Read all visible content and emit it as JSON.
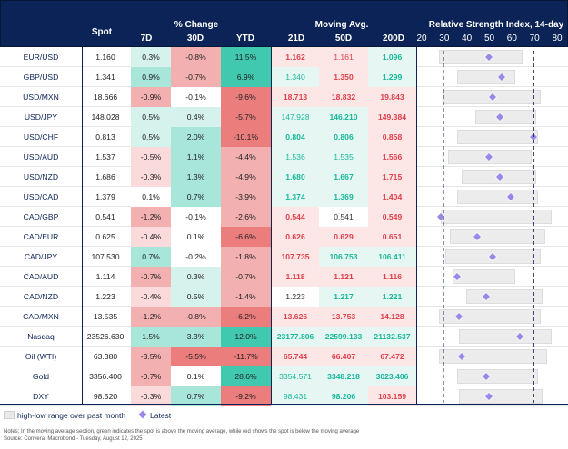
{
  "header": {
    "spot": "Spot",
    "pct_change": "% Change",
    "d7": "7D",
    "d30": "30D",
    "ytd": "YTD",
    "moving_avg": "Moving Avg.",
    "d21": "21D",
    "d50": "50D",
    "d200": "200D",
    "rsi_title": "Relative Strength Index, 14-day",
    "rsi_ticks": [
      "20",
      "30",
      "40",
      "50",
      "60",
      "70",
      "80"
    ]
  },
  "colors": {
    "navy": "#0b2357",
    "green_strong": "#41c9b0",
    "green_mid": "#a7e6d9",
    "green_light": "#d6f2ec",
    "red_strong": "#ec7d7d",
    "red_mid": "#f3b0b0",
    "red_light": "#fadada",
    "ma_green_text": "#17b89a",
    "ma_red_text": "#e0404b",
    "marker": "#9b87e6"
  },
  "rows": [
    {
      "name": "EUR/USD",
      "spot": "1.160",
      "d7": "0.3%",
      "d30": "-0.8%",
      "ytd": "11.5%",
      "ma21": "1.162",
      "ma50": "1.161",
      "ma200": "1.096",
      "rsi": {
        "low": "28",
        "high": "65",
        "latest": "50"
      }
    },
    {
      "name": "GBP/USD",
      "spot": "1.341",
      "d7": "0.9%",
      "d30": "-0.7%",
      "ytd": "6.9%",
      "ma21": "1.340",
      "ma50": "1.350",
      "ma200": "1.299",
      "rsi": {
        "low": "36",
        "high": "62",
        "latest": "56"
      }
    },
    {
      "name": "USD/MXN",
      "spot": "18.666",
      "d7": "-0.9%",
      "d30": "-0.1%",
      "ytd": "-9.6%",
      "ma21": "18.713",
      "ma50": "18.832",
      "ma200": "19.843",
      "rsi": {
        "low": "30",
        "high": "73",
        "latest": "52"
      }
    },
    {
      "name": "USD/JPY",
      "spot": "148.028",
      "d7": "0.5%",
      "d30": "0.4%",
      "ytd": "-5.7%",
      "ma21": "147.928",
      "ma50": "146.210",
      "ma200": "149.384",
      "rsi": {
        "low": "44",
        "high": "71",
        "latest": "55"
      }
    },
    {
      "name": "USD/CHF",
      "spot": "0.813",
      "d7": "0.5%",
      "d30": "2.0%",
      "ytd": "-10.1%",
      "ma21": "0.804",
      "ma50": "0.806",
      "ma200": "0.858",
      "rsi": {
        "low": "36",
        "high": "72",
        "latest": "70"
      }
    },
    {
      "name": "USD/AUD",
      "spot": "1.537",
      "d7": "-0.5%",
      "d30": "1.1%",
      "ytd": "-4.4%",
      "ma21": "1.536",
      "ma50": "1.535",
      "ma200": "1.566",
      "rsi": {
        "low": "32",
        "high": "69",
        "latest": "50"
      }
    },
    {
      "name": "USD/NZD",
      "spot": "1.686",
      "d7": "-0.3%",
      "d30": "1.3%",
      "ytd": "-4.9%",
      "ma21": "1.680",
      "ma50": "1.667",
      "ma200": "1.715",
      "rsi": {
        "low": "38",
        "high": "71",
        "latest": "55"
      }
    },
    {
      "name": "USD/CAD",
      "spot": "1.379",
      "d7": "0.1%",
      "d30": "0.7%",
      "ytd": "-3.9%",
      "ma21": "1.374",
      "ma50": "1.369",
      "ma200": "1.404",
      "rsi": {
        "low": "36",
        "high": "72",
        "latest": "60"
      }
    },
    {
      "name": "CAD/GBP",
      "spot": "0.541",
      "d7": "-1.2%",
      "d30": "-0.1%",
      "ytd": "-2.6%",
      "ma21": "0.544",
      "ma50": "0.541",
      "ma200": "0.549",
      "rsi": {
        "low": "29",
        "high": "78",
        "latest": "29"
      }
    },
    {
      "name": "CAD/EUR",
      "spot": "0.625",
      "d7": "-0.4%",
      "d30": "0.1%",
      "ytd": "-6.6%",
      "ma21": "0.626",
      "ma50": "0.629",
      "ma200": "0.651",
      "rsi": {
        "low": "33",
        "high": "75",
        "latest": "45"
      }
    },
    {
      "name": "CAD/JPY",
      "spot": "107.530",
      "d7": "0.7%",
      "d30": "-0.2%",
      "ytd": "-1.8%",
      "ma21": "107.735",
      "ma50": "106.753",
      "ma200": "106.411",
      "rsi": {
        "low": "31",
        "high": "73",
        "latest": "52"
      }
    },
    {
      "name": "CAD/AUD",
      "spot": "1.114",
      "d7": "-0.7%",
      "d30": "0.3%",
      "ytd": "-0.7%",
      "ma21": "1.118",
      "ma50": "1.121",
      "ma200": "1.116",
      "rsi": {
        "low": "34",
        "high": "62",
        "latest": "36"
      }
    },
    {
      "name": "CAD/NZD",
      "spot": "1.223",
      "d7": "-0.4%",
      "d30": "0.5%",
      "ytd": "-1.4%",
      "ma21": "1.223",
      "ma50": "1.217",
      "ma200": "1.221",
      "rsi": {
        "low": "40",
        "high": "74",
        "latest": "49"
      }
    },
    {
      "name": "CAD/MXN",
      "spot": "13.535",
      "d7": "-1.2%",
      "d30": "-0.8%",
      "ytd": "-6.2%",
      "ma21": "13.626",
      "ma50": "13.753",
      "ma200": "14.128",
      "rsi": {
        "low": "28",
        "high": "73",
        "latest": "37"
      }
    },
    {
      "name": "Nasdaq",
      "spot": "23526.630",
      "d7": "1.5%",
      "d30": "3.3%",
      "ytd": "12.0%",
      "ma21": "23177.806",
      "ma50": "22599.133",
      "ma200": "21132.537",
      "rsi": {
        "low": "37",
        "high": "78",
        "latest": "64"
      }
    },
    {
      "name": "Oil (WTI)",
      "spot": "63.380",
      "d7": "-3.5%",
      "d30": "-5.5%",
      "ytd": "-11.7%",
      "ma21": "65.744",
      "ma50": "66.407",
      "ma200": "67.472",
      "rsi": {
        "low": "28",
        "high": "76",
        "latest": "38"
      }
    },
    {
      "name": "Gold",
      "spot": "3356.400",
      "d7": "-0.7%",
      "d30": "0.1%",
      "ytd": "28.6%",
      "ma21": "3354.571",
      "ma50": "3348.218",
      "ma200": "3023.406",
      "rsi": {
        "low": "36",
        "high": "72",
        "latest": "49"
      }
    },
    {
      "name": "DXY",
      "spot": "98.520",
      "d7": "-0.3%",
      "d30": "0.7%",
      "ytd": "-9.2%",
      "ma21": "98.431",
      "ma50": "98.206",
      "ma200": "103.159",
      "rsi": {
        "low": "37",
        "high": "74",
        "latest": "50"
      }
    }
  ],
  "legend": {
    "range_label": "high-low range over past month",
    "latest_label": "Latest"
  },
  "footnote": {
    "line1": "Notes: In the moving average section, green indicates the spot is above the moving average, while red shows the spot is below the moving average",
    "line2": "Source: Convera, Macrobond - Tuesday, August 12, 2025"
  }
}
